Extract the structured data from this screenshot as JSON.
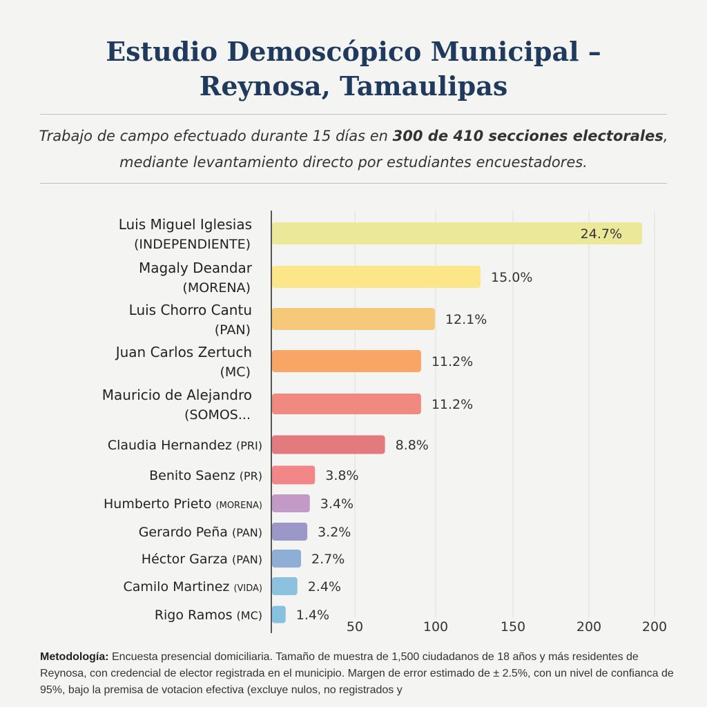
{
  "header": {
    "title_line1": "Estudio Demoscópico Municipal –",
    "title_line2": "Reynosa, Tamaulipas",
    "subtitle_part1": "Trabajo de campo efectuado durante 15 días en ",
    "subtitle_bold1": "300 de 410  secciones electorales",
    "subtitle_part2": ", mediante levantamiento directo por estudiantes encuestadores."
  },
  "chart_data": {
    "type": "bar",
    "orientation": "horizontal",
    "categories": [
      {
        "name": "Luis Miguel Iglesias",
        "party": "(INDEPENDIENTE)",
        "two_line": true
      },
      {
        "name": "Magaly Deandar",
        "party": "(MORENA)",
        "two_line": true
      },
      {
        "name": "Luis Chorro Cantu",
        "party": "(PAN)",
        "two_line": true
      },
      {
        "name": "Juan Carlos Zertuch",
        "party": "(MC)",
        "two_line": true
      },
      {
        "name": "Mauricio de Alejandro",
        "party": "(SOMOS...",
        "two_line": true
      },
      {
        "name": "Claudia Hernandez",
        "party": "(PRI)",
        "two_line": false
      },
      {
        "name": "Benito Saenz",
        "party": "(PR)",
        "two_line": false
      },
      {
        "name": "Humberto Prieto",
        "party": "(MORENA)",
        "two_line": false
      },
      {
        "name": "Gerardo Peña",
        "party": "(PAN)",
        "two_line": false
      },
      {
        "name": "Héctor Garza",
        "party": "(PAN)",
        "two_line": false
      },
      {
        "name": "Camilo Martinez",
        "party": "(VIDA)",
        "two_line": false
      },
      {
        "name": "Rigo Ramos",
        "party": "(MC)",
        "two_line": false
      }
    ],
    "values": [
      24.7,
      15.0,
      12.1,
      11.2,
      11.2,
      8.8,
      3.8,
      3.4,
      3.2,
      2.7,
      2.4,
      1.4
    ],
    "value_labels": [
      "24.7%",
      "15.0%",
      "12.1%",
      "11.2%",
      "11.2%",
      "8.8%",
      "3.8%",
      "3.4%",
      "3.2%",
      "2.7%",
      "2.4%",
      "1.4%"
    ],
    "colors": [
      "#ece89a",
      "#fbe68a",
      "#f6c97a",
      "#f9a566",
      "#f08a80",
      "#e27a7e",
      "#f2878a",
      "#c39ac6",
      "#9b98c8",
      "#8eaed6",
      "#8cc2df",
      "#88c1e0"
    ],
    "x_tick_labels": [
      "50",
      "100",
      "150",
      "200",
      "200"
    ],
    "grid": true,
    "title": "",
    "xlabel": "",
    "ylabel": ""
  },
  "footer": {
    "method_label": "Metodología:",
    "method_text": " Encuesta presencial domiciliaria. Tamaño de muestra de 1,500 ciudadanos de 18 años y más residentes de Reynosa, con credencial de elector registrada en el municipio. Margen de error estimado de ± 2.5%, con un nivel de confianca de 95%, bajo la premisa de votacion efectiva (excluye nulos, no registrados y"
  }
}
